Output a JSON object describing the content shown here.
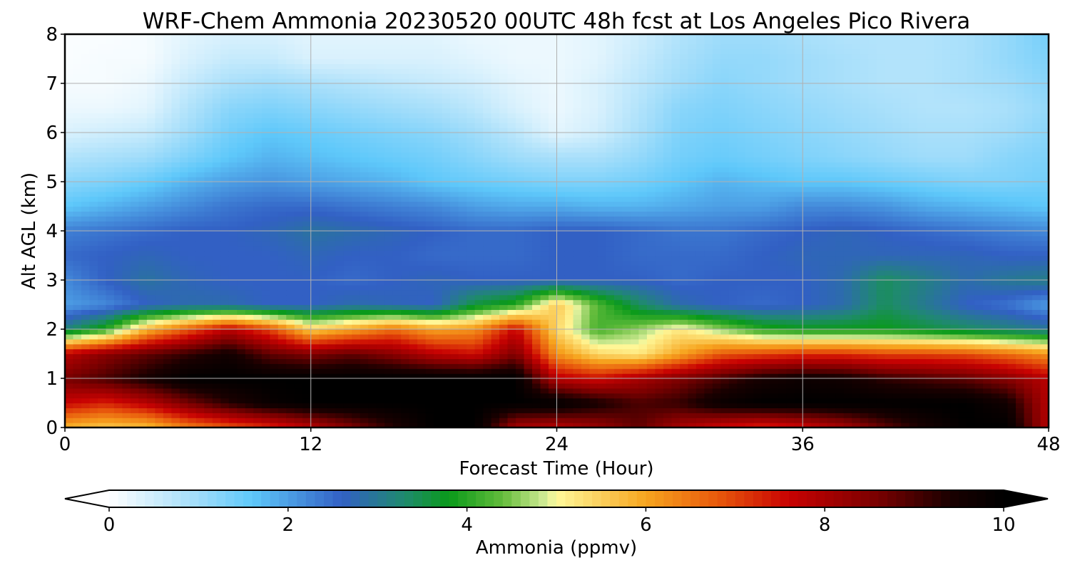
{
  "chart_data": {
    "type": "heatmap",
    "title": "WRF-Chem Ammonia  20230520 00UTC 48h fcst at Los Angeles Pico Rivera",
    "xlabel": "Forecast Time (Hour)",
    "ylabel": "Alt AGL (km)",
    "xlim": [
      0,
      48
    ],
    "ylim": [
      0,
      8
    ],
    "x_ticks": [
      "0",
      "12",
      "24",
      "36",
      "48"
    ],
    "y_ticks": [
      "0",
      "1",
      "2",
      "3",
      "4",
      "5",
      "6",
      "7",
      "8"
    ],
    "grid": true,
    "colorbar": {
      "label": "Ammonia  (ppmv)",
      "ticks": [
        "0",
        "2",
        "4",
        "6",
        "8",
        "10"
      ],
      "range": [
        0,
        10
      ],
      "extend": "both",
      "orientation": "horizontal",
      "stops": [
        {
          "value": 0,
          "color": "#ffffff"
        },
        {
          "value": 1.0,
          "color": "#9fdcfa"
        },
        {
          "value": 1.6,
          "color": "#5ec8fa"
        },
        {
          "value": 2.6,
          "color": "#3260c4"
        },
        {
          "value": 3.3,
          "color": "#1f8a6e"
        },
        {
          "value": 3.8,
          "color": "#0a9a1a"
        },
        {
          "value": 4.4,
          "color": "#64bc3c"
        },
        {
          "value": 4.9,
          "color": "#d8ee9a"
        },
        {
          "value": 5.0,
          "color": "#fff99a"
        },
        {
          "value": 6.0,
          "color": "#f7a51f"
        },
        {
          "value": 6.8,
          "color": "#e8590c"
        },
        {
          "value": 7.6,
          "color": "#c80202"
        },
        {
          "value": 8.6,
          "color": "#780000"
        },
        {
          "value": 9.4,
          "color": "#1a0000"
        },
        {
          "value": 10,
          "color": "#000000"
        }
      ]
    },
    "times": [
      0,
      2,
      4,
      6,
      8,
      10,
      12,
      14,
      16,
      18,
      20,
      22,
      24,
      26,
      28,
      30,
      32,
      34,
      36,
      38,
      40,
      42,
      44,
      46,
      48
    ],
    "altitudes_km": [
      0,
      0.5,
      1.0,
      1.5,
      2.0,
      2.5,
      3.0,
      3.5,
      4.0,
      4.5,
      5.0,
      5.5,
      6.0,
      6.5,
      7.0,
      7.5,
      8.0
    ],
    "values": [
      [
        5.8,
        5.6,
        5.7,
        6.4,
        6.8,
        7.2,
        7.8,
        8.5,
        9.3,
        10,
        10,
        8.0,
        7.8,
        8.2,
        8.8,
        8.0,
        7.5,
        7.2,
        7.5,
        8.0,
        8.8,
        9.5,
        10,
        10,
        7.8
      ],
      [
        7.6,
        7.3,
        7.8,
        8.6,
        9.3,
        9.8,
        10,
        10,
        10,
        10,
        10,
        10,
        10,
        9.5,
        9.0,
        9.2,
        9.8,
        10,
        10,
        10,
        10,
        10,
        10,
        9.6,
        7.8
      ],
      [
        8.6,
        9.0,
        9.5,
        10,
        10,
        10,
        10,
        10,
        10,
        10,
        10,
        10,
        7.8,
        7.5,
        8.0,
        8.5,
        9.0,
        9.5,
        9.7,
        9.6,
        9.2,
        9.0,
        8.8,
        8.4,
        7.8
      ],
      [
        7.8,
        8.4,
        8.8,
        9.2,
        9.6,
        8.8,
        8.5,
        8.8,
        8.4,
        7.8,
        7.5,
        8.5,
        6.2,
        5.4,
        5.2,
        6.0,
        6.8,
        7.0,
        7.2,
        7.2,
        7.0,
        7.0,
        6.9,
        6.6,
        6.2
      ],
      [
        3.2,
        4.0,
        5.8,
        6.8,
        7.8,
        7.0,
        5.5,
        6.0,
        6.6,
        6.0,
        6.2,
        7.6,
        5.4,
        4.2,
        4.6,
        5.2,
        4.6,
        4.0,
        3.8,
        3.8,
        3.8,
        3.6,
        3.4,
        3.2,
        3.0
      ],
      [
        2.0,
        2.2,
        2.6,
        2.8,
        2.8,
        2.6,
        2.6,
        2.8,
        2.7,
        2.6,
        3.6,
        4.0,
        5.6,
        4.3,
        3.4,
        2.8,
        2.6,
        2.5,
        2.6,
        2.8,
        3.4,
        3.0,
        2.6,
        2.4,
        2.0
      ],
      [
        2.2,
        2.6,
        2.9,
        2.7,
        2.6,
        2.6,
        2.6,
        2.5,
        2.6,
        2.7,
        2.6,
        2.6,
        2.6,
        2.6,
        2.6,
        2.5,
        2.6,
        2.6,
        2.6,
        2.8,
        3.4,
        3.1,
        2.8,
        3.0,
        3.1
      ],
      [
        2.5,
        2.6,
        2.7,
        2.6,
        2.6,
        2.6,
        2.7,
        2.6,
        2.6,
        2.5,
        2.5,
        2.5,
        2.6,
        2.6,
        2.5,
        2.5,
        2.5,
        2.6,
        2.7,
        2.7,
        2.7,
        2.7,
        2.7,
        2.6,
        2.6
      ],
      [
        2.3,
        2.4,
        2.5,
        2.6,
        2.6,
        2.7,
        2.9,
        2.8,
        2.7,
        2.6,
        2.5,
        2.5,
        2.6,
        2.6,
        2.5,
        2.4,
        2.4,
        2.5,
        2.6,
        2.7,
        2.6,
        2.5,
        2.4,
        2.3,
        2.2
      ],
      [
        1.6,
        1.8,
        2.0,
        2.2,
        2.4,
        2.5,
        2.5,
        2.4,
        2.3,
        2.2,
        2.0,
        1.9,
        1.9,
        1.8,
        1.8,
        1.9,
        2.0,
        2.0,
        2.2,
        2.2,
        2.1,
        1.9,
        1.8,
        1.7,
        1.6
      ],
      [
        1.2,
        1.3,
        1.5,
        1.8,
        2.0,
        2.1,
        2.0,
        1.9,
        1.8,
        1.6,
        1.5,
        1.4,
        1.3,
        1.3,
        1.4,
        1.6,
        1.8,
        1.7,
        1.6,
        1.6,
        1.5,
        1.4,
        1.3,
        1.3,
        1.4
      ],
      [
        0.8,
        0.9,
        1.0,
        1.3,
        1.6,
        1.8,
        1.7,
        1.6,
        1.5,
        1.4,
        1.2,
        1.0,
        0.9,
        0.9,
        1.1,
        1.4,
        1.5,
        1.4,
        1.3,
        1.2,
        1.1,
        1.0,
        1.0,
        1.2,
        1.3
      ],
      [
        0.4,
        0.5,
        0.6,
        1.0,
        1.4,
        1.6,
        1.5,
        1.4,
        1.3,
        1.2,
        1.0,
        0.7,
        0.3,
        0.5,
        0.9,
        1.3,
        1.4,
        1.3,
        1.2,
        1.1,
        1.0,
        0.9,
        0.9,
        1.0,
        1.2
      ],
      [
        0.2,
        0.2,
        0.3,
        0.8,
        1.2,
        1.3,
        1.2,
        1.1,
        1.0,
        0.9,
        0.7,
        0.4,
        0.2,
        0.4,
        0.8,
        1.2,
        1.3,
        1.2,
        1.1,
        1.0,
        0.9,
        0.8,
        0.8,
        0.9,
        1.1
      ],
      [
        0.1,
        0.1,
        0.2,
        0.6,
        0.9,
        1.0,
        0.9,
        0.8,
        0.7,
        0.6,
        0.5,
        0.3,
        0.2,
        0.4,
        0.7,
        1.0,
        1.2,
        1.1,
        1.0,
        0.9,
        0.8,
        0.8,
        0.9,
        1.0,
        1.2
      ],
      [
        0.05,
        0.1,
        0.1,
        0.4,
        0.6,
        0.6,
        0.4,
        0.4,
        0.4,
        0.4,
        0.3,
        0.2,
        0.2,
        0.3,
        0.6,
        0.9,
        1.1,
        1.1,
        1.0,
        0.9,
        0.8,
        0.8,
        0.9,
        1.1,
        1.3
      ],
      [
        0.05,
        0.05,
        0.1,
        0.3,
        0.4,
        0.4,
        0.3,
        0.3,
        0.3,
        0.3,
        0.2,
        0.2,
        0.2,
        0.3,
        0.5,
        0.8,
        1.0,
        1.0,
        0.9,
        0.8,
        0.8,
        0.8,
        0.9,
        1.1,
        1.4
      ]
    ]
  }
}
